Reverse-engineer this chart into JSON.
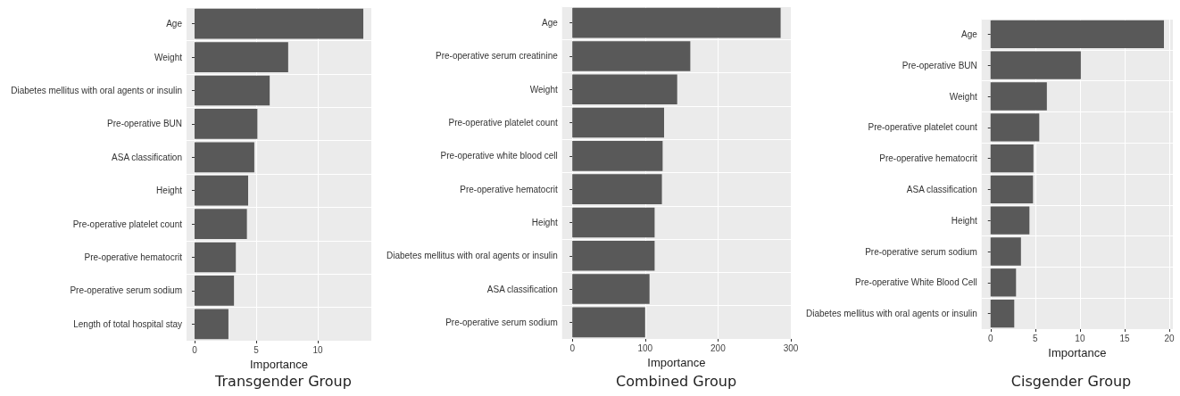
{
  "chart_data": [
    {
      "type": "bar",
      "orientation": "horizontal",
      "title": "Transgender Group",
      "xlabel": "Importance",
      "categories": [
        "Age",
        "Weight",
        "Diabetes mellitus with oral agents or insulin",
        "Pre-operative BUN",
        "ASA classification",
        "Height",
        "Pre-operative platelet count",
        "Pre-operative hematocrit",
        "Pre-operative serum sodium",
        "Length of total hospital stay"
      ],
      "values": [
        13.7,
        7.6,
        6.1,
        5.1,
        4.85,
        4.35,
        4.25,
        3.35,
        3.2,
        2.75
      ],
      "color": "#595959",
      "xlim": [
        -0.65,
        14.35
      ],
      "xticks": [
        0,
        5,
        10
      ],
      "grid": true
    },
    {
      "type": "bar",
      "orientation": "horizontal",
      "title": "Combined Group",
      "xlabel": "Importance",
      "categories": [
        "Age",
        "Pre-operative serum creatinine",
        "Weight",
        "Pre-operative platelet count",
        "Pre-operative white blood cell",
        "Pre-operative hematocrit",
        "Height",
        "Diabetes mellitus with oral agents or insulin",
        "ASA classification",
        "Pre-operative serum sodium"
      ],
      "values": [
        286,
        162,
        144,
        126,
        124,
        123,
        113,
        113,
        106,
        100
      ],
      "color": "#595959",
      "xlim": [
        -14,
        300
      ],
      "xticks": [
        0,
        100,
        200,
        300
      ],
      "grid": true
    },
    {
      "type": "bar",
      "orientation": "horizontal",
      "title": "Cisgender Group",
      "xlabel": "Importance",
      "categories": [
        "Age",
        "Pre-operative BUN",
        "Weight",
        "Pre-operative platelet count",
        "Pre-operative hematocrit",
        "ASA classification",
        "Height",
        "Pre-operative serum sodium",
        "Pre-operative White Blood Cell",
        "Diabetes mellitus with oral agents or insulin"
      ],
      "values": [
        19.4,
        10.1,
        6.3,
        5.45,
        4.8,
        4.75,
        4.35,
        3.4,
        2.85,
        2.65
      ],
      "color": "#595959",
      "xlim": [
        -1,
        20.4
      ],
      "xticks": [
        0,
        5,
        10,
        15,
        20
      ],
      "grid": true
    }
  ]
}
